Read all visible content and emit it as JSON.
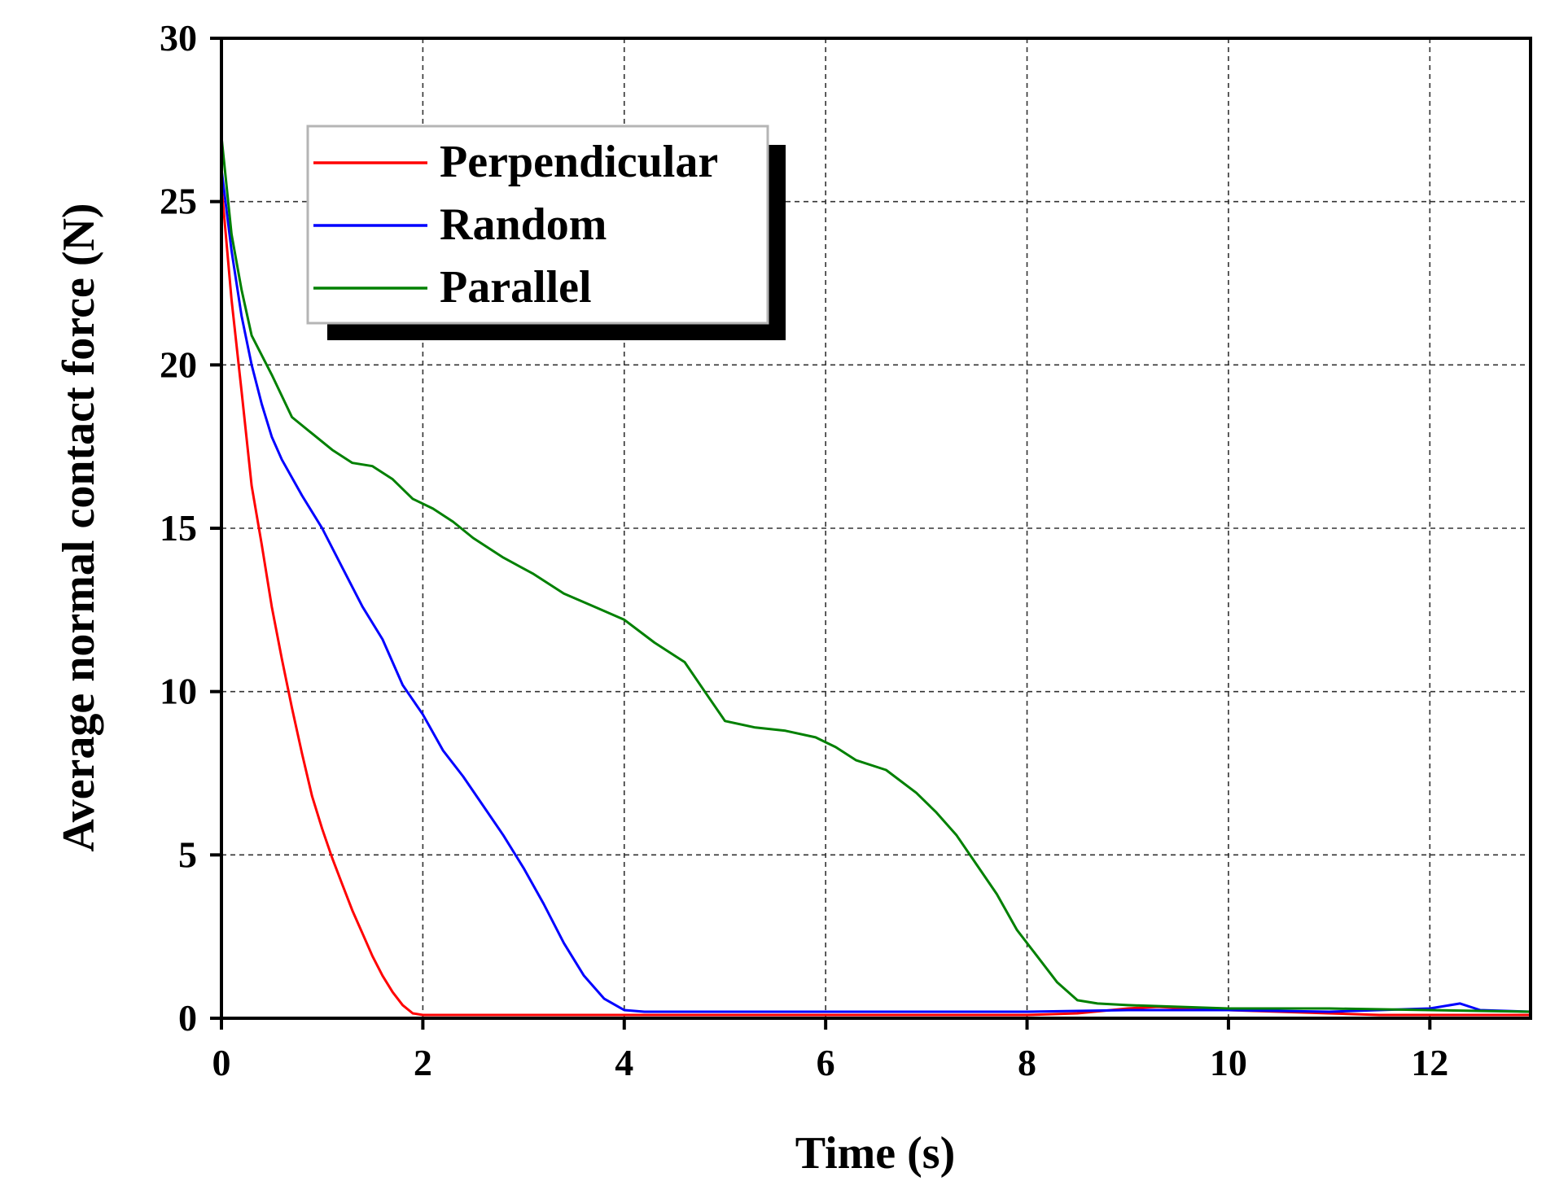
{
  "chart_data": {
    "type": "line",
    "title": "",
    "xlabel": "Time (s)",
    "ylabel": "Average normal contact force (N)",
    "xlim": [
      0,
      13
    ],
    "ylim": [
      0,
      30
    ],
    "xticks": [
      0,
      2,
      4,
      6,
      8,
      10,
      12
    ],
    "yticks": [
      0,
      5,
      10,
      15,
      20,
      25,
      30
    ],
    "grid": "dashed",
    "legend_position": "top-left",
    "series": [
      {
        "name": "Perpendicular",
        "color": "#ff0000",
        "x": [
          0,
          0.1,
          0.2,
          0.3,
          0.4,
          0.5,
          0.6,
          0.7,
          0.8,
          0.9,
          1.0,
          1.1,
          1.2,
          1.3,
          1.4,
          1.5,
          1.6,
          1.7,
          1.8,
          1.9,
          2.0,
          2.1,
          2.2,
          3,
          4,
          5,
          6,
          7,
          8,
          8.5,
          9,
          9.3,
          9.6,
          10,
          10.5,
          11,
          11.5,
          12,
          12.5,
          13
        ],
        "y": [
          25.5,
          22,
          19.2,
          16.3,
          14.5,
          12.6,
          11.0,
          9.5,
          8.1,
          6.8,
          5.8,
          4.9,
          4.1,
          3.3,
          2.6,
          1.9,
          1.3,
          0.8,
          0.4,
          0.15,
          0.1,
          0.1,
          0.1,
          0.1,
          0.1,
          0.1,
          0.1,
          0.1,
          0.1,
          0.15,
          0.3,
          0.35,
          0.3,
          0.25,
          0.2,
          0.15,
          0.1,
          0.1,
          0.1,
          0.1
        ]
      },
      {
        "name": "Random",
        "color": "#0000ff",
        "x": [
          0,
          0.1,
          0.2,
          0.3,
          0.4,
          0.5,
          0.6,
          0.8,
          1.0,
          1.2,
          1.4,
          1.6,
          1.8,
          2.0,
          2.2,
          2.4,
          2.6,
          2.8,
          3.0,
          3.2,
          3.4,
          3.6,
          3.8,
          4.0,
          4.2,
          4.5,
          5,
          6,
          7,
          8,
          9,
          10,
          11,
          12,
          12.3,
          12.5,
          13
        ],
        "y": [
          26,
          23.5,
          21.5,
          20,
          18.8,
          17.8,
          17.1,
          16.0,
          15.0,
          13.8,
          12.6,
          11.6,
          10.2,
          9.3,
          8.2,
          7.4,
          6.5,
          5.6,
          4.6,
          3.5,
          2.3,
          1.3,
          0.6,
          0.25,
          0.2,
          0.2,
          0.2,
          0.2,
          0.2,
          0.2,
          0.25,
          0.25,
          0.2,
          0.3,
          0.45,
          0.25,
          0.2
        ]
      },
      {
        "name": "Parallel",
        "color": "#008000",
        "x": [
          0,
          0.1,
          0.2,
          0.3,
          0.5,
          0.7,
          0.9,
          1.1,
          1.3,
          1.5,
          1.7,
          1.9,
          2.1,
          2.3,
          2.5,
          2.8,
          3.1,
          3.4,
          3.7,
          4.0,
          4.3,
          4.6,
          4.8,
          5.0,
          5.3,
          5.6,
          5.9,
          6.1,
          6.3,
          6.6,
          6.9,
          7.1,
          7.3,
          7.5,
          7.7,
          7.9,
          8.1,
          8.3,
          8.5,
          8.7,
          9,
          10,
          11,
          12,
          13
        ],
        "y": [
          27,
          24,
          22.3,
          20.9,
          19.7,
          18.4,
          17.9,
          17.4,
          17.0,
          16.9,
          16.5,
          15.9,
          15.6,
          15.2,
          14.7,
          14.1,
          13.6,
          13.0,
          12.6,
          12.2,
          11.5,
          10.9,
          10.0,
          9.1,
          8.9,
          8.8,
          8.6,
          8.3,
          7.9,
          7.6,
          6.9,
          6.3,
          5.6,
          4.7,
          3.8,
          2.7,
          1.9,
          1.1,
          0.55,
          0.45,
          0.4,
          0.3,
          0.3,
          0.25,
          0.2
        ]
      }
    ]
  }
}
